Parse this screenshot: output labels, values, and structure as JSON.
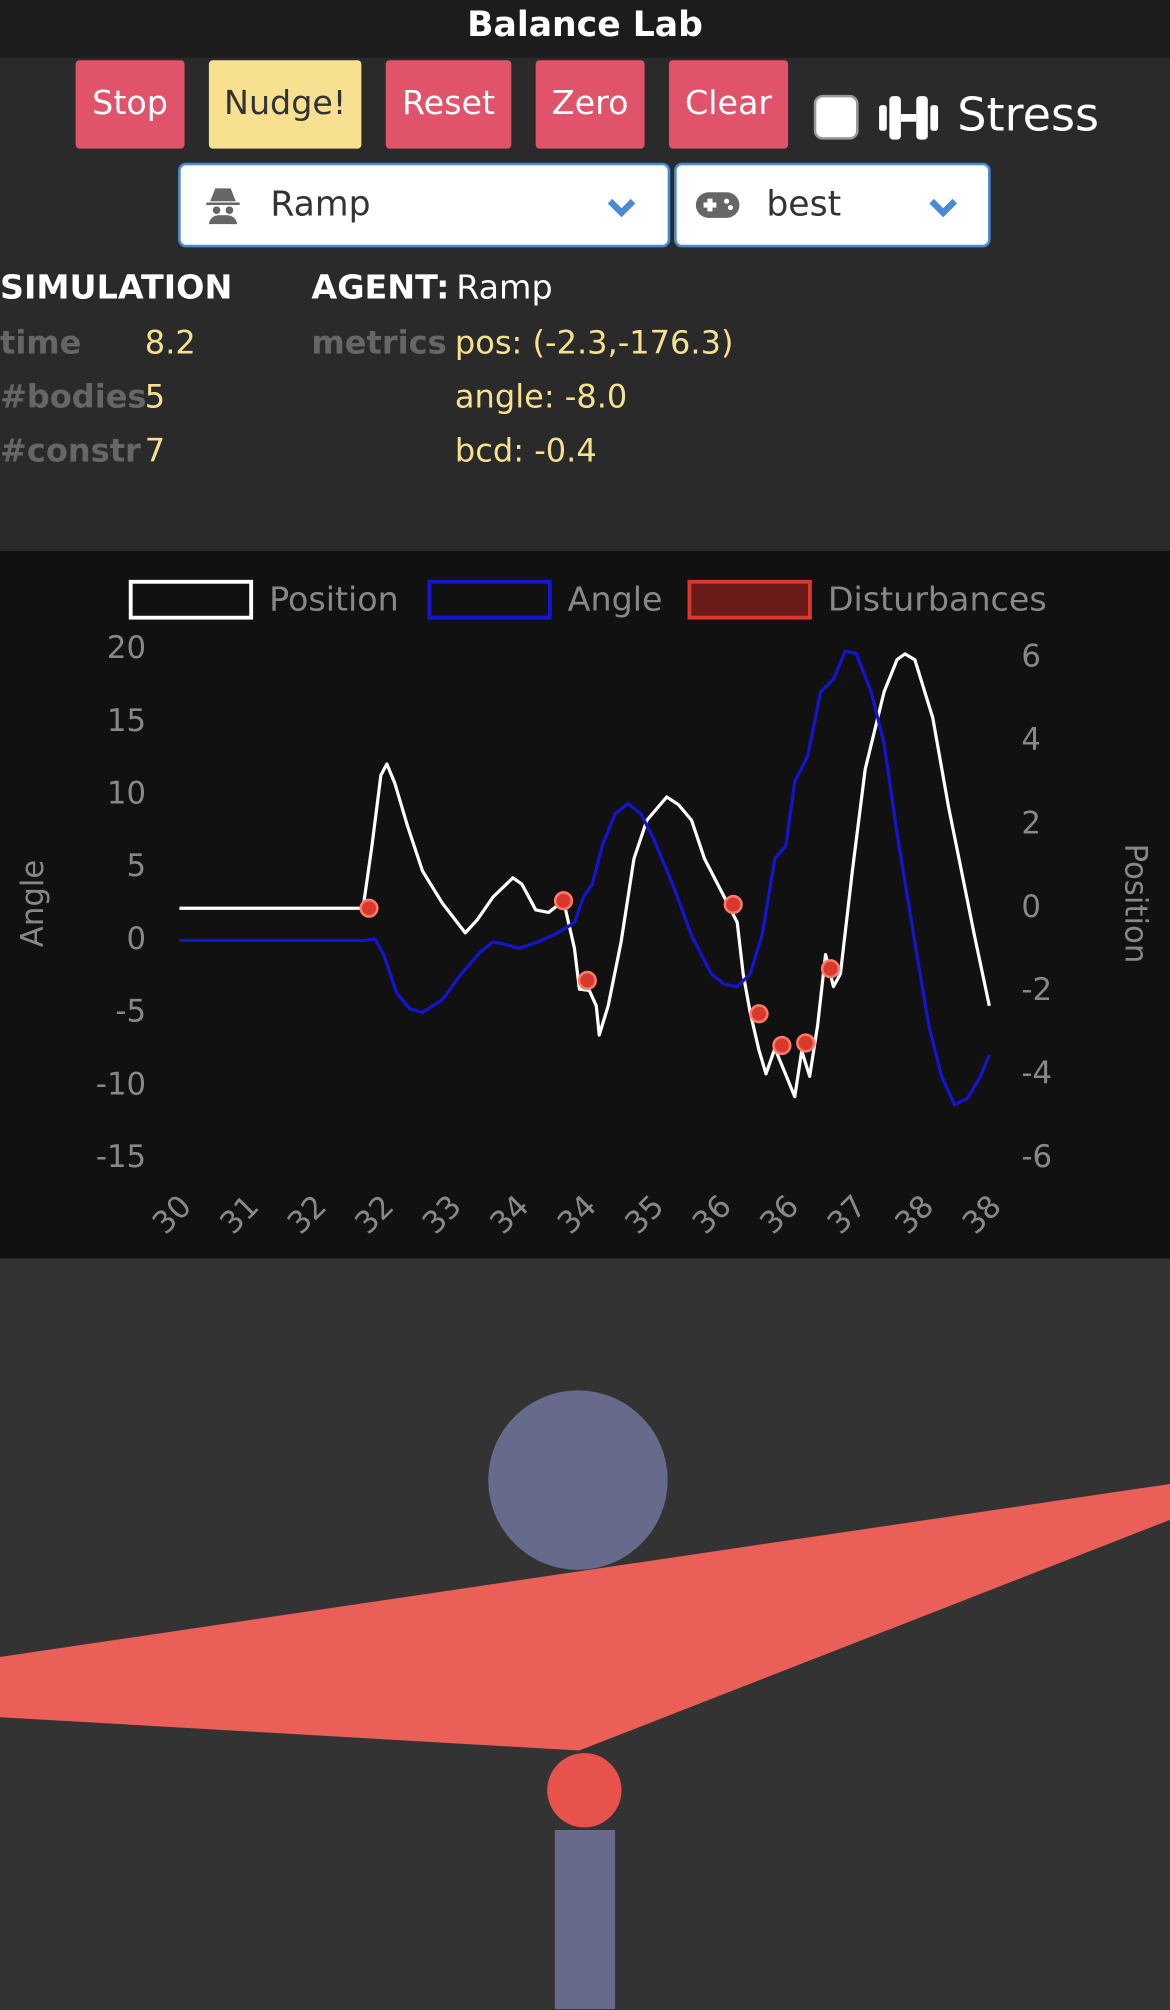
{
  "header": {
    "title": "Balance Lab"
  },
  "buttons": [
    "Stop",
    "Nudge!",
    "Reset",
    "Zero",
    "Clear"
  ],
  "stress_label": "Stress",
  "selects": {
    "agent": "Ramp",
    "controller": "best"
  },
  "simulation": {
    "heading": "SIMULATION",
    "rows": [
      {
        "label": "time",
        "value": 8.2
      },
      {
        "label": "#bodies",
        "value": 5
      },
      {
        "label": "#constr",
        "value": 7
      }
    ]
  },
  "agent": {
    "heading": "AGENT:",
    "name": "Ramp",
    "metrics_label": "metrics",
    "metrics": [
      "pos: (-2.3,-176.3)",
      "angle: -8.0",
      "bcd: -0.4"
    ]
  },
  "chart_data": {
    "type": "line",
    "ylabel": "Angle",
    "y2label": "Position",
    "xlim": [
      30.2,
      38.36
    ],
    "xticks": [
      {
        "value": 30.2,
        "label": "30"
      },
      {
        "value": 30.88,
        "label": "31"
      },
      {
        "value": 31.56,
        "label": "32"
      },
      {
        "value": 32.24,
        "label": "32"
      },
      {
        "value": 32.92,
        "label": "33"
      },
      {
        "value": 33.6,
        "label": "34"
      },
      {
        "value": 34.28,
        "label": "34"
      },
      {
        "value": 34.96,
        "label": "35"
      },
      {
        "value": 35.64,
        "label": "36"
      },
      {
        "value": 36.32,
        "label": "36"
      },
      {
        "value": 37.0,
        "label": "37"
      },
      {
        "value": 37.68,
        "label": "38"
      },
      {
        "value": 38.36,
        "label": "38"
      }
    ],
    "ylim": [
      -15,
      20
    ],
    "yticks": [
      -15,
      -10,
      -5,
      0,
      5,
      10,
      15,
      20
    ],
    "y2lim": [
      -6,
      6.2
    ],
    "y2ticks": [
      -6,
      -4,
      -2,
      0,
      2,
      4,
      6
    ],
    "grid": false,
    "legend": "top",
    "series": [
      {
        "name": "Position",
        "color": "#ffffff",
        "axis": "y2",
        "x": [
          30.2,
          32.05,
          32.14,
          32.23,
          32.29,
          32.37,
          32.5,
          32.65,
          32.85,
          33.08,
          33.2,
          33.36,
          33.56,
          33.65,
          33.79,
          33.92,
          34.07,
          34.18,
          34.23,
          34.33,
          34.4,
          34.43,
          34.52,
          34.65,
          34.78,
          34.91,
          35.11,
          35.23,
          35.36,
          35.49,
          35.69,
          35.82,
          35.88,
          35.95,
          36.04,
          36.11,
          36.2,
          36.29,
          36.4,
          36.47,
          36.55,
          36.63,
          36.71,
          36.79,
          36.86,
          36.98,
          37.11,
          37.3,
          37.43,
          37.51,
          37.61,
          37.79,
          37.95,
          38.08,
          38.21,
          38.36
        ],
        "values": [
          0,
          0,
          1.5,
          3.19,
          3.46,
          3.0,
          1.96,
          0.89,
          0.12,
          -0.59,
          -0.28,
          0.27,
          0.73,
          0.58,
          -0.04,
          -0.1,
          0.18,
          -0.96,
          -1.94,
          -1.97,
          -2.34,
          -3.04,
          -2.34,
          -0.81,
          1.19,
          2.11,
          2.67,
          2.48,
          2.11,
          1.19,
          0.27,
          -0.34,
          -1.57,
          -2.49,
          -3.41,
          -3.97,
          -3.36,
          -3.88,
          -4.52,
          -3.42,
          -4.03,
          -2.81,
          -1.11,
          -1.88,
          -1.57,
          0.89,
          3.34,
          5.19,
          5.96,
          6.1,
          5.96,
          4.57,
          2.42,
          0.89,
          -0.65,
          -2.34
        ]
      },
      {
        "name": "Angle",
        "color": "#1414d2",
        "axis": "y",
        "x": [
          30.2,
          32.07,
          32.17,
          32.26,
          32.39,
          32.52,
          32.65,
          32.85,
          33.04,
          33.23,
          33.36,
          33.49,
          33.62,
          33.81,
          34.01,
          34.18,
          34.27,
          34.36,
          34.46,
          34.59,
          34.72,
          34.85,
          34.98,
          35.17,
          35.36,
          35.56,
          35.69,
          35.82,
          35.95,
          36.07,
          36.2,
          36.31,
          36.4,
          36.53,
          36.66,
          36.79,
          36.91,
          37.02,
          37.17,
          37.3,
          37.43,
          37.62,
          37.75,
          37.88,
          38.01,
          38.14,
          38.27,
          38.36
        ],
        "values": [
          0,
          0,
          0.1,
          -1.0,
          -3.63,
          -4.69,
          -4.96,
          -4.07,
          -2.31,
          -0.81,
          -0.11,
          -0.28,
          -0.55,
          -0.11,
          0.51,
          1.22,
          2.98,
          3.86,
          6.51,
          8.71,
          9.42,
          8.71,
          6.95,
          3.86,
          0.34,
          -2.31,
          -3.02,
          -3.19,
          -2.31,
          0.34,
          5.63,
          6.51,
          10.92,
          12.68,
          17.09,
          17.97,
          19.9,
          19.74,
          17.09,
          13.56,
          7.39,
          -0.55,
          -5.84,
          -9.37,
          -11.31,
          -10.86,
          -9.37,
          -7.87
        ]
      },
      {
        "name": "Disturbances",
        "color": "#d8392c",
        "fill_color": "#6b1a1a",
        "axis": "y2",
        "type": "scatter",
        "x": [
          32.11,
          34.07,
          34.31,
          35.78,
          36.04,
          36.27,
          36.51,
          36.76
        ],
        "values": [
          0,
          0.18,
          -1.73,
          0.09,
          -2.53,
          -3.29,
          -3.23,
          -1.45
        ]
      }
    ]
  }
}
